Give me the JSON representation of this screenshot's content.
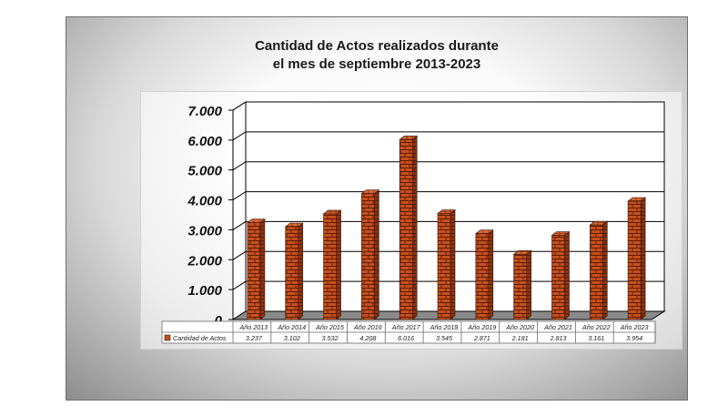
{
  "chart_data": {
    "type": "bar",
    "title": "Cantidad de Actos realizados durante",
    "subtitle": "el mes de septiembre 2013-2023",
    "categories": [
      "Año 2013",
      "Año 2014",
      "Año 2015",
      "Año 2016",
      "Año 2017",
      "Año 2018",
      "Año 2019",
      "Año 2020",
      "Año 2021",
      "Año 2022",
      "Año 2023"
    ],
    "series": [
      {
        "name": "Cantidad de Actos",
        "values": [
          3237,
          3102,
          3532,
          4208,
          6016,
          3545,
          2871,
          2181,
          2813,
          3161,
          3954
        ],
        "value_labels": [
          "3.237",
          "3.102",
          "3.532",
          "4.208",
          "6.016",
          "3.545",
          "2.871",
          "2.181",
          "2.813",
          "3.161",
          "3.954"
        ],
        "color": "#c8501e"
      }
    ],
    "ylim": [
      0,
      7000
    ],
    "yticks": [
      0,
      1000,
      2000,
      3000,
      4000,
      5000,
      6000,
      7000
    ],
    "ytick_labels": [
      "0",
      "1.000",
      "2.000",
      "3.000",
      "4.000",
      "5.000",
      "6.000",
      "7.000"
    ],
    "xlabel": "",
    "ylabel": "",
    "grid": true,
    "legend": "data-table-bottom",
    "colors": {
      "bar": "#c8501e",
      "brick_line": "#5a1e08",
      "grid": "#000000"
    }
  }
}
